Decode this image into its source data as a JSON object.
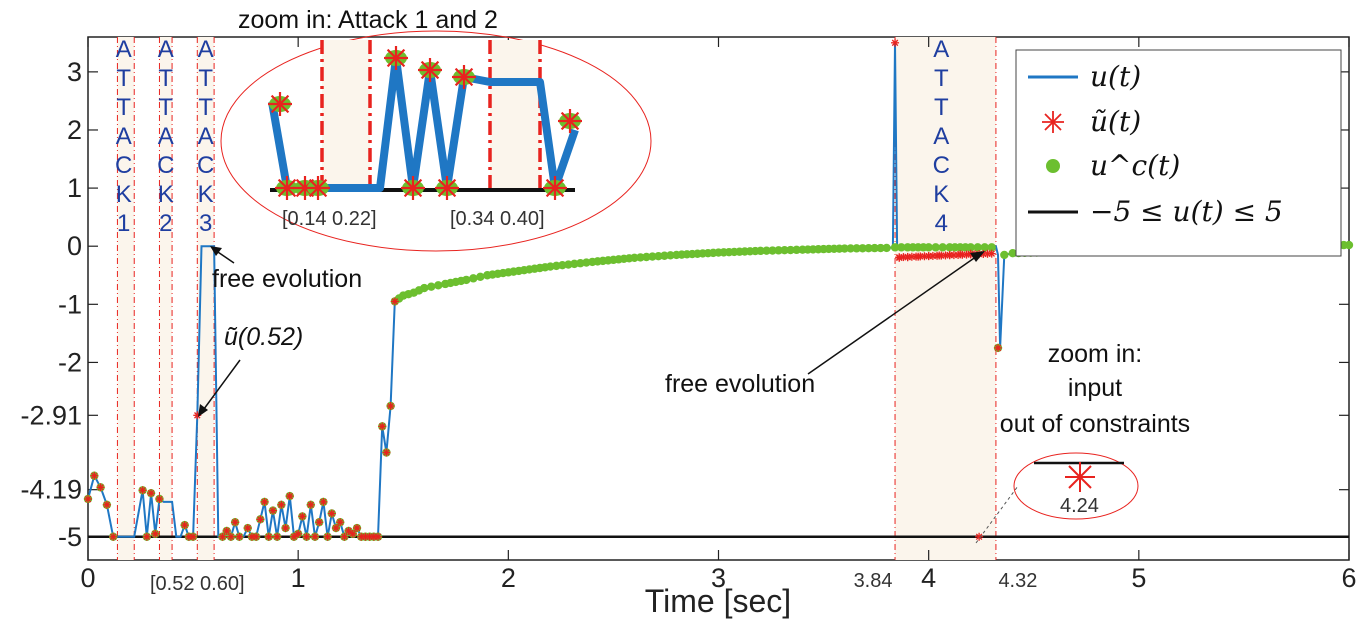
{
  "chart_data": {
    "type": "line",
    "xlabel": "Time [sec]",
    "xlim": [
      0,
      6
    ],
    "ylim": [
      -5.4,
      3.6
    ],
    "x_ticks": [
      "0",
      "1",
      "2",
      "3",
      "4",
      "5",
      "6"
    ],
    "x_extra_ticks": [
      "3.84",
      "4.32"
    ],
    "y_ticks": [
      "3",
      "2",
      "1",
      "0",
      "-1",
      "-2",
      "-2.91",
      "-4.19",
      "-5"
    ],
    "legend": [
      "u(t)",
      "ũ(t)",
      "u^c(t)",
      "−5 ≤ u(t) ≤ 5"
    ],
    "legend_position": "top-right",
    "colors": {
      "u": "#1f77c4",
      "u_tilde": "#e8231f",
      "u_c": "#6cbf2f",
      "constraint": "#111111",
      "attack_line": "#e8231f",
      "shade": "#fbf5ec",
      "attack_text": "#1f3ea0"
    },
    "series": [
      {
        "key": "u",
        "x": [
          0,
          0.03,
          0.06,
          0.09,
          0.12,
          0.14,
          0.18,
          0.22,
          0.26,
          0.28,
          0.3,
          0.32,
          0.34,
          0.36,
          0.4,
          0.42,
          0.44,
          0.46,
          0.48,
          0.5,
          0.52,
          0.54,
          0.6,
          0.62,
          0.64,
          0.66,
          0.68,
          0.7,
          0.72,
          0.74,
          0.76,
          0.78,
          0.8,
          0.82,
          0.84,
          0.86,
          0.88,
          0.9,
          0.92,
          0.94,
          0.96,
          0.98,
          1.0,
          1.02,
          1.04,
          1.06,
          1.08,
          1.1,
          1.12,
          1.14,
          1.16,
          1.18,
          1.2,
          1.22,
          1.24,
          1.26,
          1.28,
          1.3,
          1.32,
          1.34,
          1.36,
          1.38,
          1.4,
          1.42,
          1.44,
          1.46,
          1.48,
          1.5,
          1.55,
          1.6,
          1.7,
          1.8,
          1.9,
          2.0,
          2.2,
          2.4,
          2.6,
          2.8,
          3.0,
          3.2,
          3.4,
          3.6,
          3.8,
          3.83,
          3.84,
          3.85,
          3.86,
          4.1,
          4.3,
          4.32,
          4.33,
          4.34,
          4.36,
          4.4,
          4.6,
          4.8,
          5.0,
          5.2,
          5.4,
          5.6,
          5.8,
          6.0
        ],
        "y": [
          -4.35,
          -3.95,
          -4.15,
          -4.45,
          -5,
          -5,
          -5,
          -5,
          -4.2,
          -5,
          -4.25,
          -4.95,
          -4.35,
          -4.4,
          -4.4,
          -5,
          -5,
          -4.8,
          -5,
          -5,
          -2.91,
          0,
          0,
          -5,
          -5,
          -4.9,
          -5,
          -4.75,
          -5,
          -5,
          -4.85,
          -5,
          -5,
          -4.7,
          -4.4,
          -5,
          -4.55,
          -5,
          -4.45,
          -4.85,
          -4.3,
          -5,
          -4.95,
          -4.65,
          -5,
          -4.45,
          -5,
          -4.75,
          -4.4,
          -5,
          -4.6,
          -4.85,
          -4.75,
          -5,
          -4.9,
          -4.95,
          -4.85,
          -5,
          -5,
          -5,
          -5,
          -5,
          -3.1,
          -3.55,
          -2.75,
          -0.95,
          -0.9,
          -0.85,
          -0.8,
          -0.72,
          -0.65,
          -0.58,
          -0.5,
          -0.45,
          -0.35,
          -0.27,
          -0.2,
          -0.15,
          -0.11,
          -0.08,
          -0.06,
          -0.04,
          -0.03,
          -0.02,
          3.5,
          -0.01,
          0,
          0,
          0,
          0,
          -0.15,
          -1.75,
          -0.15,
          -0.12,
          -0.1,
          -0.08,
          -0.06,
          -0.04,
          -0.02,
          0,
          0.01,
          0.02
        ]
      },
      {
        "key": "u_tilde",
        "x": [
          0,
          0.03,
          0.06,
          0.09,
          0.12,
          0.26,
          0.28,
          0.3,
          0.32,
          0.34,
          0.46,
          0.48,
          0.5,
          0.52,
          0.64,
          0.66,
          0.68,
          0.7,
          0.72,
          0.76,
          0.78,
          0.8,
          0.82,
          0.84,
          0.86,
          0.88,
          0.9,
          0.92,
          0.94,
          0.96,
          0.98,
          1.0,
          1.02,
          1.04,
          1.06,
          1.08,
          1.1,
          1.12,
          1.14,
          1.16,
          1.18,
          1.2,
          1.22,
          1.24,
          1.26,
          1.28,
          1.3,
          1.32,
          1.34,
          1.36,
          1.38,
          1.4,
          1.42,
          1.44,
          1.46,
          3.84,
          3.86,
          3.9,
          3.95,
          4.0,
          4.05,
          4.1,
          4.15,
          4.2,
          4.24,
          4.33
        ],
        "y": [
          -4.35,
          -3.95,
          -4.15,
          -4.45,
          -5,
          -4.2,
          -5,
          -4.25,
          -4.95,
          -4.35,
          -4.8,
          -5,
          -5,
          -2.91,
          -5,
          -4.9,
          -5,
          -4.75,
          -5,
          -4.85,
          -5,
          -5,
          -4.7,
          -4.4,
          -5,
          -4.55,
          -5,
          -4.45,
          -4.85,
          -4.3,
          -5,
          -4.95,
          -4.65,
          -5,
          -4.45,
          -5,
          -4.75,
          -4.4,
          -5,
          -4.6,
          -4.85,
          -4.75,
          -5,
          -4.9,
          -4.95,
          -4.85,
          -5,
          -5,
          -5,
          -5,
          -5,
          -3.1,
          -3.55,
          -2.75,
          -0.95,
          3.5,
          -0.2,
          -0.19,
          -0.18,
          -0.17,
          -0.16,
          -0.15,
          -0.14,
          -0.13,
          -5,
          -1.75
        ]
      },
      {
        "key": "u_c",
        "x": [
          0,
          0.03,
          0.06,
          0.09,
          0.12,
          0.26,
          0.28,
          0.3,
          0.32,
          0.34,
          0.46,
          0.48,
          0.5,
          0.64,
          0.66,
          0.68,
          0.7,
          0.72,
          0.76,
          0.78,
          0.8,
          0.82,
          0.84,
          0.86,
          0.88,
          0.9,
          0.92,
          0.94,
          0.96,
          0.98,
          1.0,
          1.02,
          1.04,
          1.06,
          1.08,
          1.1,
          1.12,
          1.14,
          1.16,
          1.18,
          1.2,
          1.22,
          1.24,
          1.26,
          1.28,
          1.3,
          1.32,
          1.34,
          1.36,
          1.38,
          1.4,
          1.42,
          1.44,
          1.46,
          1.48,
          1.5,
          1.55,
          1.6,
          1.7,
          1.8,
          1.9,
          2.0,
          2.2,
          2.4,
          2.6,
          2.8,
          3.0,
          3.2,
          3.4,
          3.6,
          3.8,
          3.84,
          3.9,
          4.0,
          4.1,
          4.2,
          4.3,
          4.33,
          4.36,
          4.4,
          4.6,
          4.8,
          5.0,
          5.2,
          5.4,
          5.6,
          5.8,
          6.0
        ],
        "y": [
          -4.35,
          -3.95,
          -4.15,
          -4.45,
          -5,
          -4.2,
          -5,
          -4.25,
          -4.95,
          -4.35,
          -4.8,
          -5,
          -5,
          -5,
          -4.9,
          -5,
          -4.75,
          -5,
          -4.85,
          -5,
          -5,
          -4.7,
          -4.4,
          -5,
          -4.55,
          -5,
          -4.45,
          -4.85,
          -4.3,
          -5,
          -4.95,
          -4.65,
          -5,
          -4.45,
          -5,
          -4.75,
          -4.4,
          -5,
          -4.6,
          -4.85,
          -4.75,
          -5,
          -4.9,
          -4.95,
          -4.85,
          -5,
          -5,
          -5,
          -5,
          -5,
          -3.1,
          -3.55,
          -2.75,
          -0.95,
          -0.9,
          -0.85,
          -0.8,
          -0.72,
          -0.65,
          -0.58,
          -0.5,
          -0.45,
          -0.35,
          -0.27,
          -0.2,
          -0.15,
          -0.11,
          -0.08,
          -0.06,
          -0.04,
          -0.03,
          -0.02,
          -0.02,
          -0.02,
          -0.02,
          -0.02,
          -0.02,
          -1.75,
          -0.15,
          -0.12,
          -0.1,
          -0.08,
          -0.06,
          -0.04,
          -0.02,
          0,
          0.01,
          0.02
        ]
      }
    ],
    "constraint_y": -5,
    "attack_windows": [
      {
        "label": [
          "A",
          "T",
          "T",
          "A",
          "C",
          "K",
          "1"
        ],
        "x0": 0.14,
        "x1": 0.22
      },
      {
        "label": [
          "A",
          "T",
          "T",
          "A",
          "C",
          "K",
          "2"
        ],
        "x0": 0.34,
        "x1": 0.4
      },
      {
        "label": [
          "A",
          "T",
          "T",
          "A",
          "C",
          "K",
          "3"
        ],
        "x0": 0.52,
        "x1": 0.6
      },
      {
        "label": [
          "A",
          "T",
          "T",
          "A",
          "C",
          "K",
          "4"
        ],
        "x0": 3.84,
        "x1": 4.32
      }
    ],
    "annotations": {
      "zoom_title": "zoom in: Attack 1 and 2",
      "zoom_range_1": "[0.14 0.22]",
      "zoom_range_2": "[0.34 0.40]",
      "window_3_range": "[0.52 0.60]",
      "free_evolution_1": "free evolution",
      "free_evolution_2": "free evolution",
      "u_tilde_label": "ũ(0.52)",
      "zoom_input_line1": "zoom in:",
      "zoom_input_line2": "input",
      "zoom_input_line3": "out of constraints",
      "zoom_input_value": "4.24"
    }
  }
}
